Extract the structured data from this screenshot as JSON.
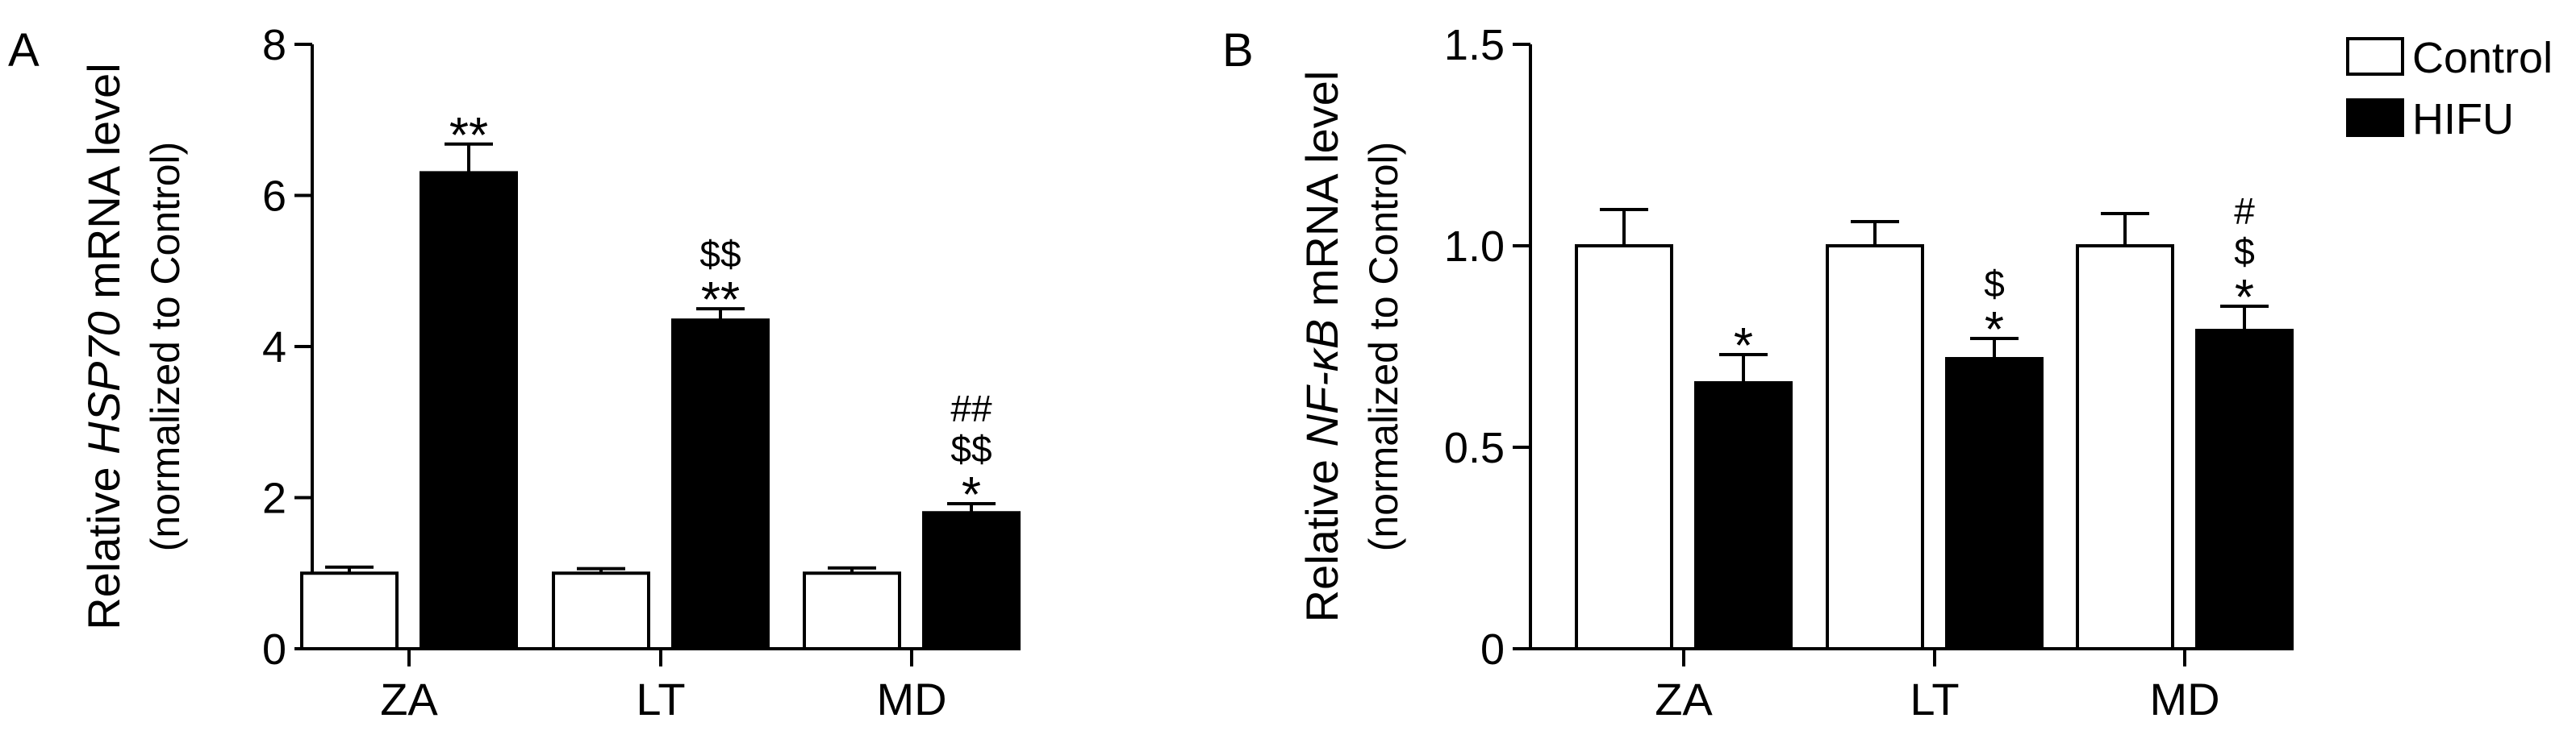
{
  "legend": {
    "items": [
      {
        "label": "Control",
        "fill": "#ffffff"
      },
      {
        "label": "HIFU",
        "fill": "#000000"
      }
    ],
    "position": "top-right"
  },
  "colors": {
    "control": "#ffffff",
    "hifu": "#000000",
    "stroke": "#000000"
  },
  "chart_data": [
    {
      "type": "bar",
      "panel_label": "A",
      "title": "",
      "ylabel_parts": [
        "Relative ",
        "HSP70",
        " mRNA level"
      ],
      "ylabel_line2": "(normalized to Control)",
      "ylim": [
        0,
        8
      ],
      "yticks": [
        0,
        2,
        4,
        6,
        8
      ],
      "ytick_labels": [
        "0",
        "2",
        "4",
        "6",
        "8"
      ],
      "categories": [
        "ZA",
        "LT",
        "MD"
      ],
      "series": [
        {
          "name": "Control",
          "values": [
            1.0,
            1.0,
            1.0
          ],
          "errors": [
            0.08,
            0.06,
            0.07
          ]
        },
        {
          "name": "HIFU",
          "values": [
            6.3,
            4.35,
            1.8
          ],
          "errors": [
            0.38,
            0.15,
            0.12
          ]
        }
      ],
      "annotations": [
        [
          "**"
        ],
        [
          "$$",
          "**"
        ],
        [
          "##",
          "$$",
          "*"
        ]
      ],
      "grid": false
    },
    {
      "type": "bar",
      "panel_label": "B",
      "title": "",
      "ylabel_parts": [
        "Relative ",
        "NF-κB",
        " mRNA level"
      ],
      "ylabel_line2": "(normalized to Control)",
      "ylim": [
        0,
        1.5
      ],
      "yticks": [
        0,
        0.5,
        1.0,
        1.5
      ],
      "ytick_labels": [
        "0",
        "0.5",
        "1.0",
        "1.5"
      ],
      "categories": [
        "ZA",
        "LT",
        "MD"
      ],
      "series": [
        {
          "name": "Control",
          "values": [
            1.0,
            1.0,
            1.0
          ],
          "errors": [
            0.09,
            0.06,
            0.08
          ]
        },
        {
          "name": "HIFU",
          "values": [
            0.66,
            0.72,
            0.79
          ],
          "errors": [
            0.07,
            0.05,
            0.06
          ]
        }
      ],
      "annotations": [
        [
          "*"
        ],
        [
          "$",
          "*"
        ],
        [
          "#",
          "$",
          "*"
        ]
      ],
      "grid": false
    }
  ]
}
